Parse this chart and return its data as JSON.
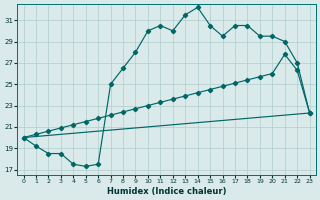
{
  "xlabel": "Humidex (Indice chaleur)",
  "bg_color": "#daeaea",
  "grid_color": "#b0cccc",
  "line_color": "#006666",
  "xlim": [
    -0.5,
    23.5
  ],
  "ylim": [
    16.5,
    32.5
  ],
  "xticks": [
    0,
    1,
    2,
    3,
    4,
    5,
    6,
    7,
    8,
    9,
    10,
    11,
    12,
    13,
    14,
    15,
    16,
    17,
    18,
    19,
    20,
    21,
    22,
    23
  ],
  "yticks": [
    17,
    19,
    21,
    23,
    25,
    27,
    29,
    31
  ],
  "line1_x": [
    0,
    1,
    2,
    3,
    4,
    5,
    6,
    7,
    8,
    9,
    10,
    11,
    12,
    13,
    14,
    15,
    16,
    17,
    18,
    19,
    20,
    21,
    22,
    23
  ],
  "line1_y": [
    20.0,
    19.2,
    18.5,
    18.5,
    17.5,
    17.3,
    17.5,
    25.0,
    26.5,
    28.0,
    30.0,
    30.5,
    30.0,
    31.5,
    32.2,
    30.5,
    29.5,
    30.5,
    30.5,
    29.5,
    29.5,
    29.0,
    27.0,
    22.3
  ],
  "line2_x": [
    0,
    1,
    2,
    3,
    4,
    5,
    6,
    7,
    8,
    9,
    10,
    11,
    12,
    13,
    14,
    15,
    16,
    17,
    18,
    19,
    20,
    21,
    22,
    23
  ],
  "line2_y": [
    20.0,
    20.3,
    20.6,
    20.9,
    21.2,
    21.5,
    21.8,
    22.1,
    22.4,
    22.7,
    23.0,
    23.3,
    23.6,
    23.9,
    24.2,
    24.5,
    24.8,
    25.1,
    25.4,
    25.7,
    26.0,
    27.8,
    26.3,
    22.3
  ],
  "line3_x": [
    0,
    1,
    2,
    3,
    4,
    5,
    6,
    7,
    8,
    9,
    10,
    11,
    12,
    13,
    14,
    15,
    16,
    17,
    18,
    19,
    20,
    21,
    22,
    23
  ],
  "line3_y": [
    20.0,
    20.1,
    20.2,
    20.3,
    20.4,
    20.5,
    20.6,
    20.7,
    20.8,
    20.9,
    21.0,
    21.1,
    21.2,
    21.3,
    21.4,
    21.5,
    21.6,
    21.7,
    21.8,
    21.9,
    22.0,
    22.1,
    22.2,
    22.3
  ]
}
